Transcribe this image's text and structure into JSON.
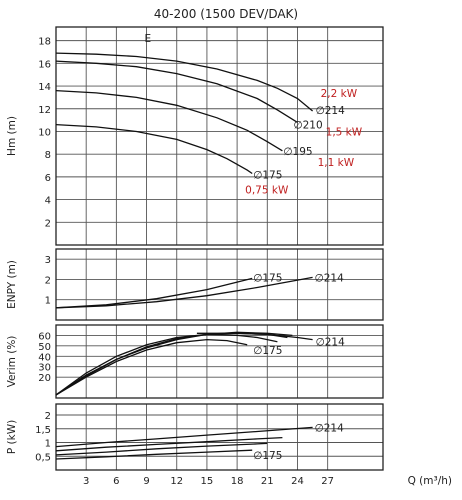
{
  "chart_data": {
    "type": "line",
    "title": "40-200 (1500 DEV/DAK)",
    "xlabel": "Q (m³/h)",
    "xticks": [
      "3",
      "6",
      "9",
      "12",
      "15",
      "18",
      "21",
      "24",
      "27"
    ],
    "xlim": [
      0,
      32.5
    ],
    "panels": [
      {
        "key": "head",
        "ylabel": "Hm (m)",
        "ylim": [
          0,
          19.2
        ],
        "yticks": [
          "2",
          "4",
          "6",
          "8",
          "10",
          "12",
          "14",
          "16",
          "18"
        ],
        "corner_label": "E",
        "series": [
          {
            "name": "∅214",
            "x": [
              0,
              4,
              8,
              12,
              16,
              20,
              22,
              24,
              25.5
            ],
            "y": [
              16.9,
              16.8,
              16.6,
              16.2,
              15.5,
              14.5,
              13.8,
              12.9,
              11.8
            ]
          },
          {
            "name": "∅210",
            "x": [
              0,
              4,
              8,
              12,
              16,
              20,
              22,
              24
            ],
            "y": [
              16.2,
              16.0,
              15.7,
              15.1,
              14.2,
              12.9,
              11.9,
              10.8
            ]
          },
          {
            "name": "∅195",
            "x": [
              0,
              4,
              8,
              12,
              16,
              19,
              21,
              22.5
            ],
            "y": [
              13.6,
              13.4,
              13.0,
              12.3,
              11.2,
              10.1,
              9.1,
              8.3
            ]
          },
          {
            "name": "∅175",
            "x": [
              0,
              4,
              8,
              12,
              15,
              17,
              19,
              19.5
            ],
            "y": [
              10.6,
              10.4,
              10.0,
              9.3,
              8.4,
              7.6,
              6.6,
              6.3
            ]
          }
        ],
        "labels": [
          {
            "text": "2,2 kW",
            "x": 26.3,
            "y": 13.4,
            "red": true
          },
          {
            "text": "∅214",
            "x": 25.8,
            "y": 11.9,
            "red": false
          },
          {
            "text": "∅210",
            "x": 23.6,
            "y": 10.6,
            "red": false
          },
          {
            "text": "1,5 kW",
            "x": 26.8,
            "y": 10.0,
            "red": true
          },
          {
            "text": "∅195",
            "x": 22.6,
            "y": 8.3,
            "red": false
          },
          {
            "text": "1,1 kW",
            "x": 26.0,
            "y": 7.3,
            "red": true
          },
          {
            "text": "∅175",
            "x": 19.6,
            "y": 6.2,
            "red": false
          },
          {
            "text": "0,75 kW",
            "x": 18.8,
            "y": 4.9,
            "red": true
          }
        ]
      },
      {
        "key": "npsh",
        "ylabel": "ENPY (m)",
        "ylim": [
          0,
          3.5
        ],
        "yticks": [
          "1",
          "2",
          "3"
        ],
        "series": [
          {
            "name": "∅175",
            "x": [
              0,
              5,
              10,
              15,
              19.5
            ],
            "y": [
              0.6,
              0.75,
              1.05,
              1.5,
              2.05
            ]
          },
          {
            "name": "∅214",
            "x": [
              0,
              5,
              10,
              15,
              20,
              25.5
            ],
            "y": [
              0.6,
              0.7,
              0.9,
              1.2,
              1.6,
              2.1
            ]
          }
        ],
        "labels": [
          {
            "text": "∅175",
            "x": 19.6,
            "y": 2.1,
            "red": false
          },
          {
            "text": "∅214",
            "x": 25.7,
            "y": 2.1,
            "red": false
          }
        ]
      },
      {
        "key": "eff",
        "ylabel": "Verim (%)",
        "ylim": [
          0,
          70
        ],
        "yticks": [
          "20",
          "30",
          "40",
          "50",
          "60"
        ],
        "series": [
          {
            "name": "∅214",
            "x": [
              0,
              3,
              6,
              9,
              12,
              15,
              18,
              21,
              23.5
            ],
            "y": [
              3,
              22,
              37,
              48,
              56,
              61,
              63,
              62,
              60
            ]
          },
          {
            "name": "∅210",
            "x": [
              0,
              3,
              6,
              9,
              12,
              15,
              18,
              21,
              23
            ],
            "y": [
              3,
              21,
              37,
              49,
              57,
              61,
              62,
              61,
              58
            ]
          },
          {
            "name": "∅195",
            "x": [
              0,
              3,
              6,
              9,
              12,
              15,
              18,
              20,
              22
            ],
            "y": [
              3,
              24,
              40,
              51,
              58,
              61,
              60,
              58,
              54
            ]
          },
          {
            "name": "∅175",
            "x": [
              0,
              3,
              6,
              9,
              12,
              15,
              17,
              19
            ],
            "y": [
              3,
              20,
              35,
              46,
              53,
              56,
              55,
              51
            ]
          },
          {
            "name": "∅214",
            "x": [
              14,
              18,
              21,
              24,
              25.5
            ],
            "y": [
              62,
              62,
              61,
              58,
              56
            ]
          }
        ],
        "labels": [
          {
            "text": "∅214",
            "x": 25.8,
            "y": 54,
            "red": false
          },
          {
            "text": "∅175",
            "x": 19.6,
            "y": 46,
            "red": false
          }
        ]
      },
      {
        "key": "power",
        "ylabel": "P (kW)",
        "ylim": [
          0,
          2.4
        ],
        "yticks": [
          "0,5",
          "1",
          "1,5",
          "2"
        ],
        "series": [
          {
            "name": "∅214",
            "x": [
              0,
              5,
              10,
              15,
              20,
              25.5
            ],
            "y": [
              0.85,
              1.0,
              1.13,
              1.27,
              1.4,
              1.55
            ]
          },
          {
            "name": "∅210",
            "x": [
              0,
              5,
              10,
              15,
              20,
              22.5
            ],
            "y": [
              0.7,
              0.83,
              0.93,
              1.03,
              1.13,
              1.18
            ]
          },
          {
            "name": "∅195",
            "x": [
              0,
              5,
              10,
              15,
              20,
              21
            ],
            "y": [
              0.55,
              0.65,
              0.77,
              0.87,
              0.95,
              0.97
            ]
          },
          {
            "name": "∅175",
            "x": [
              0,
              5,
              10,
              15,
              19.5
            ],
            "y": [
              0.4,
              0.48,
              0.57,
              0.65,
              0.72
            ]
          }
        ],
        "labels": [
          {
            "text": "∅214",
            "x": 25.7,
            "y": 1.55,
            "red": false
          },
          {
            "text": "∅175",
            "x": 19.6,
            "y": 0.55,
            "red": false
          }
        ]
      }
    ]
  }
}
